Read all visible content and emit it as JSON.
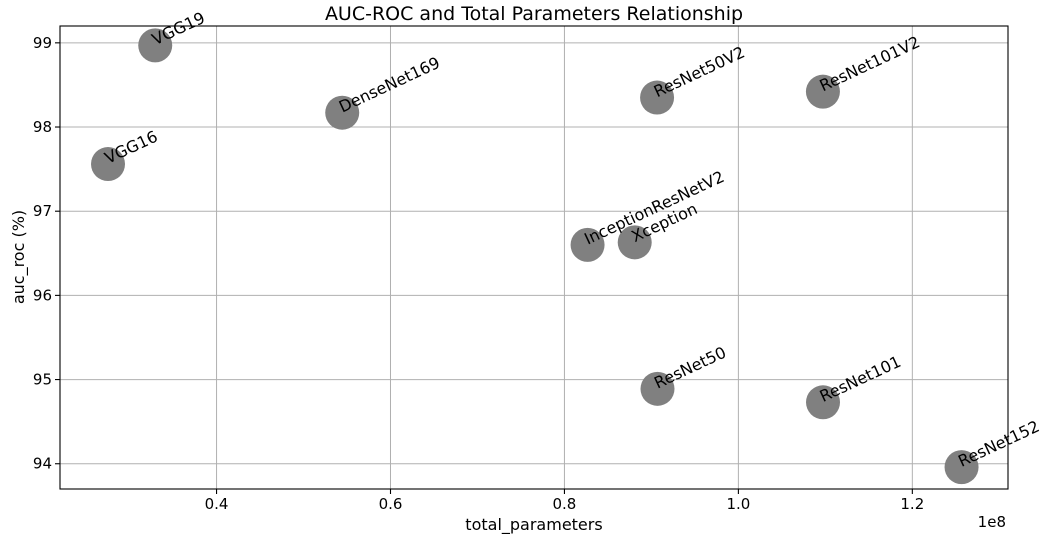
{
  "chart_data": {
    "type": "scatter",
    "title": "AUC-ROC and Total Parameters Relationship",
    "xlabel": "total_parameters",
    "ylabel": "auc_roc (%)",
    "x_offset_label": "1e8",
    "xlim": [
      0.22,
      1.31
    ],
    "ylim": [
      93.7,
      99.2
    ],
    "xticks": [
      0.4,
      0.6,
      0.8,
      1.0,
      1.2
    ],
    "xtick_labels": [
      "0.4",
      "0.6",
      "0.8",
      "1.0",
      "1.2"
    ],
    "yticks": [
      94,
      95,
      96,
      97,
      98,
      99
    ],
    "ytick_labels": [
      "94",
      "95",
      "96",
      "97",
      "98",
      "99"
    ],
    "grid": true,
    "marker_color": "#808080",
    "points": [
      {
        "label": "VGG19",
        "x": 0.3295,
        "y": 98.97
      },
      {
        "label": "DenseNet169",
        "x": 0.5445,
        "y": 98.17
      },
      {
        "label": "VGG16",
        "x": 0.2752,
        "y": 97.56
      },
      {
        "label": "ResNet50V2",
        "x": 0.9065,
        "y": 98.35
      },
      {
        "label": "ResNet101V2",
        "x": 1.0972,
        "y": 98.42
      },
      {
        "label": "InceptionResNetV2",
        "x": 0.8266,
        "y": 96.6
      },
      {
        "label": "Xception",
        "x": 0.8808,
        "y": 96.63
      },
      {
        "label": "ResNet50",
        "x": 0.907,
        "y": 94.89
      },
      {
        "label": "ResNet101",
        "x": 1.0973,
        "y": 94.73
      },
      {
        "label": "ResNet152",
        "x": 1.2566,
        "y": 93.96
      }
    ]
  }
}
